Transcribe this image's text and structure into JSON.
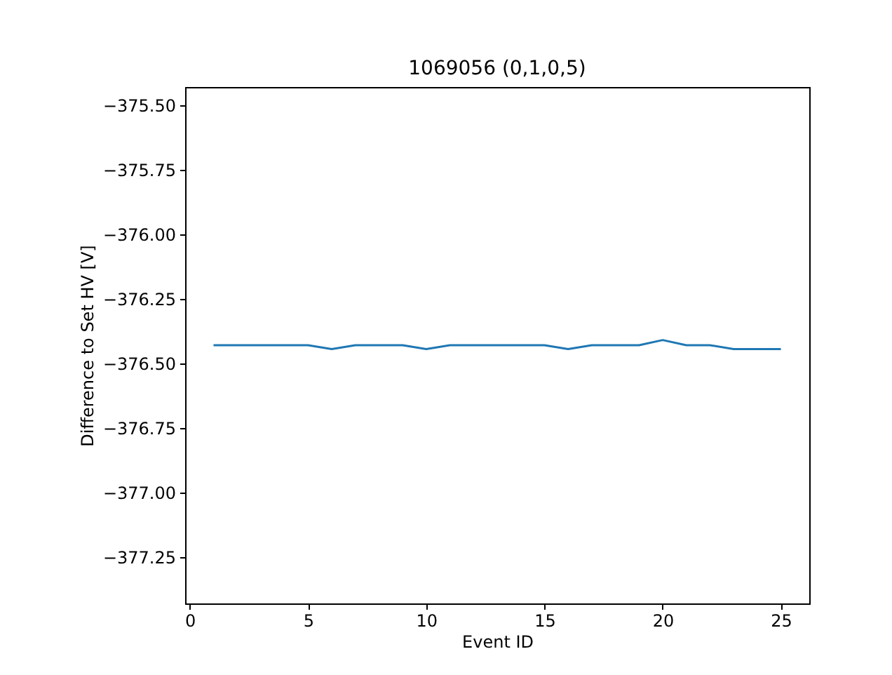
{
  "chart_data": {
    "type": "line",
    "title": "1069056 (0,1,0,5)",
    "xlabel": "Event ID",
    "ylabel": "Difference to Set HV [V]",
    "x": [
      1,
      2,
      3,
      4,
      5,
      6,
      7,
      8,
      9,
      10,
      11,
      12,
      13,
      14,
      15,
      16,
      17,
      18,
      19,
      20,
      21,
      22,
      23,
      24,
      25
    ],
    "series": [
      {
        "color": "#1f77b4",
        "values": [
          -376.43,
          -376.43,
          -376.43,
          -376.43,
          -376.43,
          -376.445,
          -376.43,
          -376.43,
          -376.43,
          -376.445,
          -376.43,
          -376.43,
          -376.43,
          -376.43,
          -376.43,
          -376.445,
          -376.43,
          -376.43,
          -376.43,
          -376.41,
          -376.43,
          -376.43,
          -376.445,
          -376.445,
          -376.445
        ]
      }
    ],
    "xlim": [
      -0.2,
      26.2
    ],
    "xticks": [
      0,
      5,
      10,
      15,
      20,
      25
    ],
    "ylim": [
      -377.43,
      -375.43
    ],
    "yticks": [
      {
        "value": -377.25,
        "label": "−377.25"
      },
      {
        "value": -377.0,
        "label": "−377.00"
      },
      {
        "value": -376.75,
        "label": "−376.75"
      },
      {
        "value": -376.5,
        "label": "−376.50"
      },
      {
        "value": -376.25,
        "label": "−376.25"
      },
      {
        "value": -376.0,
        "label": "−376.00"
      },
      {
        "value": -375.75,
        "label": "−375.75"
      },
      {
        "value": -375.5,
        "label": "−375.50"
      }
    ],
    "grid": false,
    "marker": "none",
    "line_style": "solid"
  }
}
